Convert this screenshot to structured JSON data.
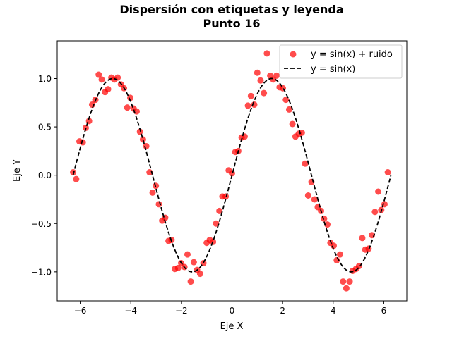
{
  "chart_data": {
    "type": "scatter",
    "title_line1": "Dispersión con etiquetas y leyenda",
    "title_line2": "Punto 16",
    "xlabel": "Eje X",
    "ylabel": "Eje Y",
    "xlim": [
      -6.91,
      6.91
    ],
    "ylim": [
      -1.3,
      1.39
    ],
    "xticks": [
      -6,
      -4,
      -2,
      0,
      2,
      4,
      6
    ],
    "xtick_labels": [
      "−6",
      "−4",
      "−2",
      "0",
      "2",
      "4",
      "6"
    ],
    "yticks": [
      -1.0,
      -0.5,
      0.0,
      0.5,
      1.0
    ],
    "ytick_labels": [
      "−1.0",
      "−0.5",
      "0.0",
      "0.5",
      "1.0"
    ],
    "grid": false,
    "legend_position": "top-right",
    "series": [
      {
        "name": "y = sin(x) + ruido",
        "kind": "scatter",
        "color": "#ff0000",
        "alpha": 0.7,
        "points": [
          [
            -6.28,
            0.03
          ],
          [
            -6.16,
            -0.04
          ],
          [
            -6.03,
            0.35
          ],
          [
            -5.9,
            0.34
          ],
          [
            -5.78,
            0.49
          ],
          [
            -5.65,
            0.56
          ],
          [
            -5.53,
            0.73
          ],
          [
            -5.4,
            0.78
          ],
          [
            -5.27,
            1.04
          ],
          [
            -5.15,
            0.99
          ],
          [
            -5.02,
            0.86
          ],
          [
            -4.9,
            0.89
          ],
          [
            -4.77,
            1.01
          ],
          [
            -4.65,
            0.99
          ],
          [
            -4.52,
            1.01
          ],
          [
            -4.39,
            0.94
          ],
          [
            -4.27,
            0.9
          ],
          [
            -4.14,
            0.7
          ],
          [
            -4.02,
            0.8
          ],
          [
            -3.89,
            0.69
          ],
          [
            -3.77,
            0.66
          ],
          [
            -3.64,
            0.45
          ],
          [
            -3.52,
            0.37
          ],
          [
            -3.39,
            0.3
          ],
          [
            -3.26,
            0.03
          ],
          [
            -3.14,
            -0.18
          ],
          [
            -3.01,
            -0.11
          ],
          [
            -2.89,
            -0.3
          ],
          [
            -2.76,
            -0.47
          ],
          [
            -2.64,
            -0.44
          ],
          [
            -2.51,
            -0.68
          ],
          [
            -2.39,
            -0.67
          ],
          [
            -2.26,
            -0.97
          ],
          [
            -2.13,
            -0.96
          ],
          [
            -2.01,
            -0.91
          ],
          [
            -1.88,
            -0.95
          ],
          [
            -1.76,
            -0.82
          ],
          [
            -1.63,
            -1.1
          ],
          [
            -1.51,
            -0.9
          ],
          [
            -1.38,
            -0.98
          ],
          [
            -1.26,
            -1.02
          ],
          [
            -1.13,
            -0.91
          ],
          [
            -1.0,
            -0.7
          ],
          [
            -0.88,
            -0.67
          ],
          [
            -0.75,
            -0.69
          ],
          [
            -0.63,
            -0.5
          ],
          [
            -0.5,
            -0.37
          ],
          [
            -0.38,
            -0.22
          ],
          [
            -0.25,
            -0.22
          ],
          [
            -0.13,
            0.05
          ],
          [
            0.0,
            0.02
          ],
          [
            0.13,
            0.24
          ],
          [
            0.25,
            0.25
          ],
          [
            0.38,
            0.39
          ],
          [
            0.5,
            0.4
          ],
          [
            0.63,
            0.72
          ],
          [
            0.75,
            0.82
          ],
          [
            0.88,
            0.73
          ],
          [
            1.0,
            1.06
          ],
          [
            1.13,
            0.98
          ],
          [
            1.26,
            0.85
          ],
          [
            1.38,
            1.26
          ],
          [
            1.51,
            1.03
          ],
          [
            1.63,
            0.99
          ],
          [
            1.76,
            1.03
          ],
          [
            1.88,
            0.91
          ],
          [
            2.01,
            0.9
          ],
          [
            2.13,
            0.78
          ],
          [
            2.26,
            0.68
          ],
          [
            2.39,
            0.53
          ],
          [
            2.51,
            0.4
          ],
          [
            2.64,
            0.43
          ],
          [
            2.76,
            0.44
          ],
          [
            2.89,
            0.12
          ],
          [
            3.01,
            -0.21
          ],
          [
            3.14,
            -0.07
          ],
          [
            3.26,
            -0.25
          ],
          [
            3.39,
            -0.33
          ],
          [
            3.52,
            -0.37
          ],
          [
            3.64,
            -0.45
          ],
          [
            3.77,
            -0.51
          ],
          [
            3.89,
            -0.7
          ],
          [
            4.02,
            -0.73
          ],
          [
            4.14,
            -0.88
          ],
          [
            4.27,
            -0.82
          ],
          [
            4.39,
            -1.1
          ],
          [
            4.52,
            -1.17
          ],
          [
            4.65,
            -1.1
          ],
          [
            4.77,
            -0.99
          ],
          [
            4.9,
            -0.97
          ],
          [
            5.02,
            -0.94
          ],
          [
            5.15,
            -0.65
          ],
          [
            5.27,
            -0.77
          ],
          [
            5.4,
            -0.76
          ],
          [
            5.53,
            -0.62
          ],
          [
            5.65,
            -0.38
          ],
          [
            5.78,
            -0.17
          ],
          [
            5.9,
            -0.36
          ],
          [
            6.03,
            -0.3
          ],
          [
            6.16,
            0.03
          ]
        ]
      },
      {
        "name": "y = sin(x)",
        "kind": "line",
        "color": "#000000",
        "dash": "dashed",
        "function": "sin",
        "x_range": [
          -6.28,
          6.28
        ]
      }
    ]
  }
}
